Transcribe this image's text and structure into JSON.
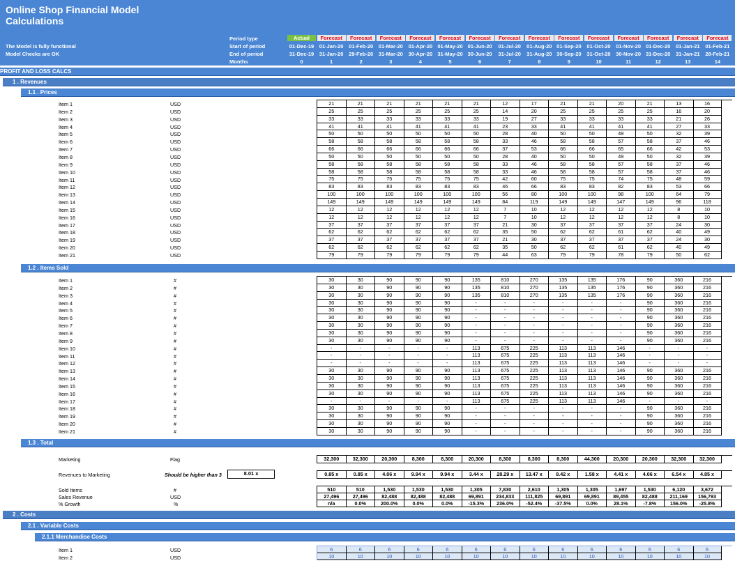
{
  "header": {
    "title_line1": "Online Shop Financial Model",
    "title_line2": "Calculations",
    "status1": "The Model is fully functional",
    "status2": "Model Checks are OK",
    "labels": [
      "Period type",
      "Start of period",
      "End of period",
      "Months"
    ],
    "period_types": [
      "Actual",
      "Forecast",
      "Forecast",
      "Forecast",
      "Forecast",
      "Forecast",
      "Forecast",
      "Forecast",
      "Forecast",
      "Forecast",
      "Forecast",
      "Forecast",
      "Forecast",
      "Forecast",
      "Forecast"
    ],
    "start_dates": [
      "01-Dec-19",
      "01-Jan-20",
      "01-Feb-20",
      "01-Mar-20",
      "01-Apr-20",
      "01-May-20",
      "01-Jun-20",
      "01-Jul-20",
      "01-Aug-20",
      "01-Sep-20",
      "01-Oct-20",
      "01-Nov-20",
      "01-Dec-20",
      "01-Jan-21",
      "01-Feb-21"
    ],
    "end_dates": [
      "31-Dec-19",
      "31-Jan-20",
      "29-Feb-20",
      "31-Mar-20",
      "30-Apr-20",
      "31-May-20",
      "30-Jun-20",
      "31-Jul-20",
      "31-Aug-20",
      "30-Sep-20",
      "31-Oct-20",
      "30-Nov-20",
      "31-Dec-20",
      "31-Jan-21",
      "28-Feb-21"
    ],
    "months": [
      "0",
      "1",
      "2",
      "3",
      "4",
      "5",
      "6",
      "7",
      "8",
      "9",
      "10",
      "11",
      "12",
      "13",
      "14"
    ]
  },
  "sections": {
    "pl": "PROFIT AND LOSS CALCS",
    "revenues": "1 . Revenues",
    "prices": "1.1 . Prices",
    "sold": "1.2 . Items Sold",
    "total": "1.3 . Total",
    "costs": "2 . Costs",
    "variable": "2.1 . Variable Costs",
    "merch": "2.1.1 Merchandise Costs"
  },
  "prices": {
    "unit": "USD",
    "items": [
      "Item 1",
      "Item 2",
      "Item 3",
      "Item 4",
      "Item 5",
      "Item 6",
      "Item 7",
      "Item 8",
      "Item 9",
      "Item 10",
      "Item 11",
      "Item 12",
      "Item 13",
      "Item 14",
      "Item 15",
      "Item 16",
      "Item 17",
      "Item 18",
      "Item 19",
      "Item 20",
      "Item 21"
    ],
    "rows": [
      [
        "21",
        "21",
        "21",
        "21",
        "21",
        "21",
        "12",
        "17",
        "21",
        "21",
        "20",
        "21",
        "13",
        "16"
      ],
      [
        "25",
        "25",
        "25",
        "25",
        "25",
        "25",
        "14",
        "20",
        "25",
        "25",
        "25",
        "25",
        "16",
        "20"
      ],
      [
        "33",
        "33",
        "33",
        "33",
        "33",
        "33",
        "19",
        "27",
        "33",
        "33",
        "33",
        "33",
        "21",
        "26"
      ],
      [
        "41",
        "41",
        "41",
        "41",
        "41",
        "41",
        "23",
        "33",
        "41",
        "41",
        "41",
        "41",
        "27",
        "33"
      ],
      [
        "50",
        "50",
        "50",
        "50",
        "50",
        "50",
        "28",
        "40",
        "50",
        "50",
        "49",
        "50",
        "32",
        "39"
      ],
      [
        "58",
        "58",
        "58",
        "58",
        "58",
        "58",
        "33",
        "46",
        "58",
        "58",
        "57",
        "58",
        "37",
        "46"
      ],
      [
        "66",
        "66",
        "66",
        "66",
        "66",
        "66",
        "37",
        "53",
        "66",
        "66",
        "65",
        "66",
        "42",
        "53"
      ],
      [
        "50",
        "50",
        "50",
        "50",
        "50",
        "50",
        "28",
        "40",
        "50",
        "50",
        "49",
        "50",
        "32",
        "39"
      ],
      [
        "58",
        "58",
        "58",
        "58",
        "58",
        "58",
        "33",
        "46",
        "58",
        "58",
        "57",
        "58",
        "37",
        "46"
      ],
      [
        "58",
        "58",
        "58",
        "58",
        "58",
        "58",
        "33",
        "46",
        "58",
        "58",
        "57",
        "58",
        "37",
        "46"
      ],
      [
        "75",
        "75",
        "75",
        "75",
        "75",
        "75",
        "42",
        "60",
        "75",
        "75",
        "74",
        "75",
        "48",
        "59"
      ],
      [
        "83",
        "83",
        "83",
        "83",
        "83",
        "83",
        "46",
        "66",
        "83",
        "83",
        "82",
        "83",
        "53",
        "66"
      ],
      [
        "100",
        "100",
        "100",
        "100",
        "100",
        "100",
        "56",
        "80",
        "100",
        "100",
        "98",
        "100",
        "64",
        "79"
      ],
      [
        "149",
        "149",
        "149",
        "149",
        "149",
        "149",
        "84",
        "119",
        "149",
        "149",
        "147",
        "149",
        "96",
        "118"
      ],
      [
        "12",
        "12",
        "12",
        "12",
        "12",
        "12",
        "7",
        "10",
        "12",
        "12",
        "12",
        "12",
        "8",
        "10"
      ],
      [
        "12",
        "12",
        "12",
        "12",
        "12",
        "12",
        "7",
        "10",
        "12",
        "12",
        "12",
        "12",
        "8",
        "10"
      ],
      [
        "37",
        "37",
        "37",
        "37",
        "37",
        "37",
        "21",
        "30",
        "37",
        "37",
        "37",
        "37",
        "24",
        "30"
      ],
      [
        "62",
        "62",
        "62",
        "62",
        "62",
        "62",
        "35",
        "50",
        "62",
        "62",
        "61",
        "62",
        "40",
        "49"
      ],
      [
        "37",
        "37",
        "37",
        "37",
        "37",
        "37",
        "21",
        "30",
        "37",
        "37",
        "37",
        "37",
        "24",
        "30"
      ],
      [
        "62",
        "62",
        "62",
        "62",
        "62",
        "62",
        "35",
        "50",
        "62",
        "62",
        "61",
        "62",
        "40",
        "49"
      ],
      [
        "79",
        "79",
        "79",
        "79",
        "79",
        "79",
        "44",
        "63",
        "79",
        "79",
        "78",
        "79",
        "50",
        "62"
      ]
    ]
  },
  "sold": {
    "unit": "#",
    "items": [
      "Item 1",
      "Item 2",
      "Item 3",
      "Item 4",
      "Item 5",
      "Item 6",
      "Item 7",
      "Item 8",
      "Item 9",
      "Item 10",
      "Item 11",
      "Item 12",
      "Item 13",
      "Item 14",
      "Item 15",
      "Item 16",
      "Item 17",
      "Item 18",
      "Item 19",
      "Item 20",
      "Item 21"
    ],
    "rows": [
      [
        "30",
        "30",
        "90",
        "90",
        "90",
        "135",
        "810",
        "270",
        "135",
        "135",
        "176",
        "90",
        "360",
        "216"
      ],
      [
        "30",
        "30",
        "90",
        "90",
        "90",
        "135",
        "810",
        "270",
        "135",
        "135",
        "176",
        "90",
        "360",
        "216"
      ],
      [
        "30",
        "30",
        "90",
        "90",
        "90",
        "135",
        "810",
        "270",
        "135",
        "135",
        "176",
        "90",
        "360",
        "216"
      ],
      [
        "30",
        "30",
        "90",
        "90",
        "90",
        "-",
        "-",
        "-",
        "-",
        "-",
        "-",
        "90",
        "360",
        "216"
      ],
      [
        "30",
        "30",
        "90",
        "90",
        "90",
        "-",
        "-",
        "-",
        "-",
        "-",
        "-",
        "90",
        "360",
        "216"
      ],
      [
        "30",
        "30",
        "90",
        "90",
        "90",
        "-",
        "-",
        "-",
        "-",
        "-",
        "-",
        "90",
        "360",
        "216"
      ],
      [
        "30",
        "30",
        "90",
        "90",
        "90",
        "-",
        "-",
        "-",
        "-",
        "-",
        "-",
        "90",
        "360",
        "216"
      ],
      [
        "30",
        "30",
        "90",
        "90",
        "90",
        "-",
        "-",
        "-",
        "-",
        "-",
        "-",
        "90",
        "360",
        "216"
      ],
      [
        "30",
        "30",
        "90",
        "90",
        "90",
        "-",
        "-",
        "-",
        "-",
        "-",
        "-",
        "90",
        "360",
        "216"
      ],
      [
        "-",
        "-",
        "-",
        "-",
        "-",
        "113",
        "675",
        "225",
        "113",
        "113",
        "146",
        "-",
        "-",
        "-"
      ],
      [
        "-",
        "-",
        "-",
        "-",
        "-",
        "113",
        "675",
        "225",
        "113",
        "113",
        "146",
        "-",
        "-",
        "-"
      ],
      [
        "-",
        "-",
        "-",
        "-",
        "-",
        "113",
        "675",
        "225",
        "113",
        "113",
        "146",
        "-",
        "-",
        "-"
      ],
      [
        "30",
        "30",
        "90",
        "90",
        "90",
        "113",
        "675",
        "225",
        "113",
        "113",
        "146",
        "90",
        "360",
        "216"
      ],
      [
        "30",
        "30",
        "90",
        "90",
        "90",
        "113",
        "675",
        "225",
        "113",
        "113",
        "146",
        "90",
        "360",
        "216"
      ],
      [
        "30",
        "30",
        "90",
        "90",
        "90",
        "113",
        "675",
        "225",
        "113",
        "113",
        "146",
        "90",
        "360",
        "216"
      ],
      [
        "30",
        "30",
        "90",
        "90",
        "90",
        "113",
        "675",
        "225",
        "113",
        "113",
        "146",
        "90",
        "360",
        "216"
      ],
      [
        "-",
        "-",
        "-",
        "-",
        "-",
        "113",
        "675",
        "225",
        "113",
        "113",
        "146",
        "-",
        "-",
        "-"
      ],
      [
        "30",
        "30",
        "90",
        "90",
        "90",
        "-",
        "-",
        "-",
        "-",
        "-",
        "-",
        "90",
        "360",
        "216"
      ],
      [
        "30",
        "30",
        "90",
        "90",
        "90",
        "-",
        "-",
        "-",
        "-",
        "-",
        "-",
        "90",
        "360",
        "216"
      ],
      [
        "30",
        "30",
        "90",
        "90",
        "90",
        "-",
        "-",
        "-",
        "-",
        "-",
        "-",
        "90",
        "360",
        "216"
      ],
      [
        "30",
        "30",
        "90",
        "90",
        "90",
        "-",
        "-",
        "-",
        "-",
        "-",
        "-",
        "90",
        "360",
        "216"
      ]
    ]
  },
  "total": {
    "marketing_label": "Marketing",
    "marketing_unit": "Flag",
    "marketing": [
      "32,300",
      "32,300",
      "20,300",
      "8,300",
      "8,300",
      "20,300",
      "8,300",
      "8,300",
      "8,300",
      "44,300",
      "20,300",
      "20,300",
      "32,300",
      "32,300"
    ],
    "r2m_label": "Revenues to Marketing",
    "r2m_note": "Should be higher than 3",
    "r2m_value": "8.01 x",
    "r2m": [
      "0.85 x",
      "0.85 x",
      "4.06 x",
      "9.94 x",
      "9.94 x",
      "3.44 x",
      "28.29 x",
      "13.47 x",
      "8.42 x",
      "1.58 x",
      "4.41 x",
      "4.06 x",
      "6.54 x",
      "4.85 x"
    ],
    "sold_label": "Sold Items",
    "sold_unit": "#",
    "sold": [
      "510",
      "510",
      "1,530",
      "1,530",
      "1,530",
      "1,305",
      "7,830",
      "2,610",
      "1,305",
      "1,305",
      "1,697",
      "1,530",
      "6,120",
      "3,672"
    ],
    "sales_label": "Sales Revenue",
    "sales_unit": "USD",
    "sales": [
      "27,496",
      "27,496",
      "82,488",
      "82,488",
      "82,488",
      "69,891",
      "234,833",
      "111,825",
      "69,891",
      "69,891",
      "89,455",
      "82,488",
      "211,169",
      "156,793"
    ],
    "growth_label": "% Growth",
    "growth_unit": "%",
    "growth": [
      "n/a",
      "0.0%",
      "200.0%",
      "0.0%",
      "0.0%",
      "-15.3%",
      "236.0%",
      "-52.4%",
      "-37.5%",
      "0.0%",
      "28.1%",
      "-7.8%",
      "156.0%",
      "-25.8%"
    ]
  },
  "merch": {
    "unit": "USD",
    "items": [
      "Item 1",
      "Item 2"
    ],
    "rows": [
      [
        "6",
        "6",
        "6",
        "6",
        "6",
        "6",
        "6",
        "6",
        "6",
        "6",
        "6",
        "6",
        "6",
        "6"
      ],
      [
        "10",
        "10",
        "10",
        "10",
        "10",
        "10",
        "10",
        "10",
        "10",
        "10",
        "10",
        "10",
        "10",
        "10"
      ]
    ]
  }
}
